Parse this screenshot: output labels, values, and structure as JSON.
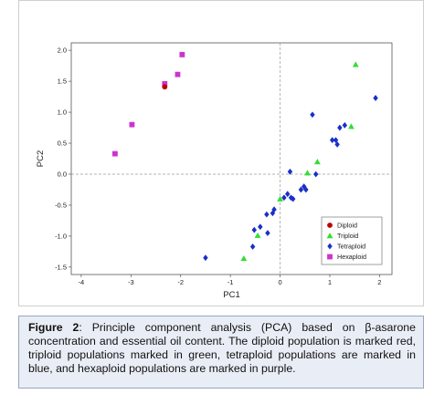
{
  "chart_data": {
    "type": "scatter",
    "xlabel": "PC1",
    "ylabel": "PC2",
    "xlim": [
      -4.2,
      2.25
    ],
    "ylim": [
      -1.62,
      2.12
    ],
    "xticks": [
      -4,
      -3,
      -2,
      -1,
      0,
      1,
      2
    ],
    "yticks": [
      -1.5,
      -1.0,
      -0.5,
      0.0,
      0.5,
      1.0,
      1.5,
      2.0
    ],
    "xtick_labels": [
      "-4",
      "-3",
      "-2",
      "-1",
      "0",
      "1",
      "2"
    ],
    "ytick_labels": [
      "-1.5",
      "-1.0",
      "-0.5",
      "0.0",
      "0.5",
      "1.0",
      "1.5",
      "2.0"
    ],
    "reference_lines": {
      "x": 0,
      "y": 0
    },
    "legend_position": "bottom-right",
    "series": [
      {
        "name": "Diploid",
        "marker": "circle",
        "color": "#c00000",
        "points": [
          [
            -2.32,
            1.41
          ]
        ]
      },
      {
        "name": "Triploid",
        "marker": "triangle",
        "color": "#33dd33",
        "points": [
          [
            1.52,
            1.77
          ],
          [
            1.43,
            0.77
          ],
          [
            0.75,
            0.2
          ],
          [
            0.55,
            0.02
          ],
          [
            0.0,
            -0.4
          ],
          [
            -0.45,
            -0.99
          ],
          [
            -0.73,
            -1.36
          ]
        ]
      },
      {
        "name": "Tetraploid",
        "marker": "diamond",
        "color": "#1a2fc8",
        "points": [
          [
            1.92,
            1.23
          ],
          [
            0.65,
            0.96
          ],
          [
            1.3,
            0.79
          ],
          [
            1.2,
            0.75
          ],
          [
            1.12,
            0.55
          ],
          [
            1.05,
            0.55
          ],
          [
            1.15,
            0.48
          ],
          [
            0.72,
            0.0
          ],
          [
            0.2,
            0.04
          ],
          [
            0.48,
            -0.2
          ],
          [
            0.42,
            -0.25
          ],
          [
            0.52,
            -0.25
          ],
          [
            0.22,
            -0.38
          ],
          [
            0.15,
            -0.32
          ],
          [
            0.26,
            -0.4
          ],
          [
            0.08,
            -0.38
          ],
          [
            -0.12,
            -0.57
          ],
          [
            -0.15,
            -0.63
          ],
          [
            -0.27,
            -0.65
          ],
          [
            -0.25,
            -0.95
          ],
          [
            -0.4,
            -0.85
          ],
          [
            -0.52,
            -0.9
          ],
          [
            -0.55,
            -1.17
          ],
          [
            -1.5,
            -1.35
          ]
        ]
      },
      {
        "name": "Hexaploid",
        "marker": "square",
        "color": "#cc33cc",
        "points": [
          [
            -1.97,
            1.93
          ],
          [
            -2.06,
            1.61
          ],
          [
            -2.32,
            1.46
          ],
          [
            -2.98,
            0.8
          ],
          [
            -3.32,
            0.33
          ]
        ]
      }
    ]
  },
  "caption": {
    "label": "Figure 2",
    "text": ": Principle component analysis (PCA) based on β-asarone concentration and essential oil content. The diploid population is marked red, triploid populations marked in green, tetraploid populations are marked in blue, and hexaploid populations are marked in purple."
  }
}
